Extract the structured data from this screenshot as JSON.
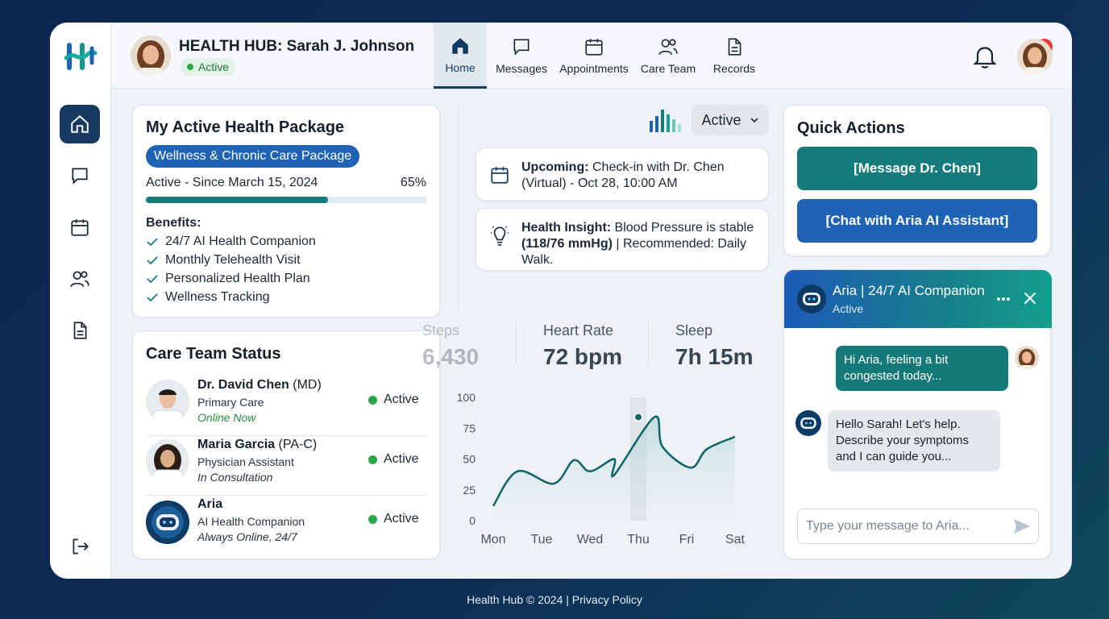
{
  "colors": {
    "brand_navy": "#163a5f",
    "teal": "#157a77",
    "blue": "#1f63b5",
    "green": "#2aa64a",
    "alert": "#e53935"
  },
  "header": {
    "user_title": "HEALTH HUB: Sarah J. Johnson",
    "user_status": "Active",
    "nav": [
      {
        "label": "Home",
        "icon": "home-icon"
      },
      {
        "label": "Messages",
        "icon": "message-icon"
      },
      {
        "label": "Appointments",
        "icon": "calendar-icon"
      },
      {
        "label": "Care Team",
        "icon": "users-icon"
      },
      {
        "label": "Records",
        "icon": "document-icon"
      }
    ],
    "notification_count": "1"
  },
  "sidebar": {
    "items": [
      {
        "icon": "home-icon"
      },
      {
        "icon": "message-icon"
      },
      {
        "icon": "calendar-icon"
      },
      {
        "icon": "users-icon"
      },
      {
        "icon": "document-icon"
      },
      {
        "icon": "logout-icon"
      }
    ]
  },
  "package": {
    "title": "My Active Health Package",
    "name": "Wellness & Chronic Care Package",
    "status": "Active - Since March 15, 2024",
    "progress_label": "65%",
    "progress": 0.65,
    "benefits_label": "Benefits:",
    "benefits": [
      "24/7 AI Health Companion",
      "Monthly Telehealth Visit",
      "Personalized Health Plan",
      "Wellness Tracking"
    ]
  },
  "care_team": {
    "title": "Care Team Status",
    "members": [
      {
        "name": "Dr. David Chen",
        "credential": " (MD)",
        "role": "Primary Care",
        "status": "Online Now",
        "state": "Active"
      },
      {
        "name": "Maria Garcia",
        "credential": " (PA-C)",
        "role": "Physician Assistant",
        "status": "In Consultation",
        "state": "Active"
      },
      {
        "name": "Aria",
        "credential": "",
        "role": "AI Health Companion",
        "status": "Always Online, 24/7",
        "state": "Active"
      }
    ]
  },
  "overview": {
    "status_select": "Active",
    "upcoming": {
      "label": "Upcoming:",
      "text": " Check-in with Dr. Chen (Virtual) - Oct 28, 10:00 AM"
    },
    "insight": {
      "label": "Health Insight:",
      "text": " Blood Pressure is stable ",
      "bold": "(118/76 mmHg)",
      "tail": " | Recommended: Daily Walk."
    },
    "metrics": [
      {
        "label": "Steps",
        "value": "6,430"
      },
      {
        "label": "Heart Rate",
        "value": "72 bpm"
      },
      {
        "label": "Sleep",
        "value": "7h 15m"
      }
    ]
  },
  "chart_data": {
    "type": "area",
    "categories": [
      "Mon",
      "Tue",
      "Wed",
      "Thu",
      "Fri",
      "Sat"
    ],
    "series": [
      {
        "values": [
          12,
          40,
          30,
          49,
          40,
          50,
          37,
          84,
          60,
          43,
          58,
          68
        ]
      }
    ],
    "x": [
      0,
      0.6,
      1.5,
      2.0,
      2.4,
      3.0,
      3.0,
      4.0,
      4.2,
      4.9,
      5.3,
      6.0
    ],
    "ylim": [
      0,
      100
    ],
    "yticks": [
      0,
      25,
      50,
      75,
      100
    ],
    "highlight_category": "Thu",
    "highlight_value": 84,
    "grid": false,
    "legend": "none"
  },
  "quick_actions": {
    "title": "Quick Actions",
    "buttons": [
      "[Message Dr. Chen]",
      "[Chat with Aria AI Assistant]"
    ]
  },
  "chat": {
    "title": "Aria | 24/7 AI Companion",
    "subtitle": "Active",
    "messages": [
      {
        "from": "user",
        "text": "Hi Aria, feeling a bit congested today..."
      },
      {
        "from": "bot",
        "text": "Hello Sarah! Let's help. Describe your symptoms and I can guide you..."
      }
    ],
    "input_placeholder": "Type your message to Aria..."
  },
  "footer": {
    "text": "Health Hub © 2024 | Privacy Policy"
  }
}
